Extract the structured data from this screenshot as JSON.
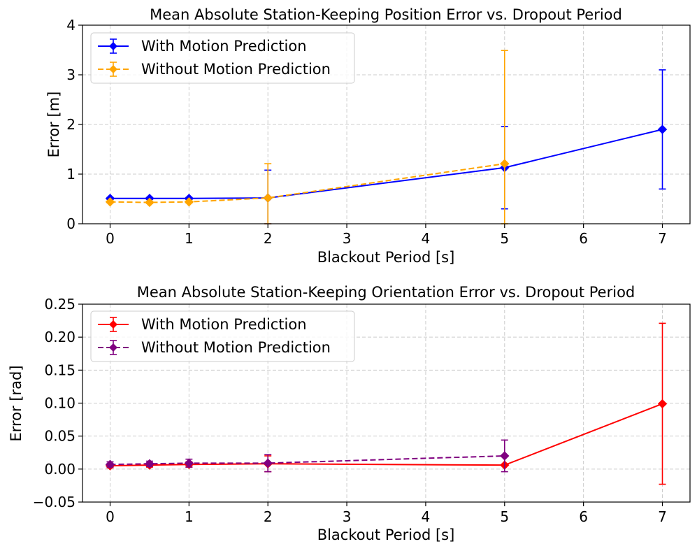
{
  "chart_data": [
    {
      "type": "line",
      "title": "Mean Absolute Station-Keeping Position Error vs. Dropout Period",
      "xlabel": "Blackout Period [s]",
      "ylabel": "Error [m]",
      "xlim": [
        -0.35,
        7.35
      ],
      "ylim": [
        0,
        4
      ],
      "xticks": [
        0,
        1,
        2,
        3,
        4,
        5,
        6,
        7
      ],
      "yticks": [
        0,
        1,
        2,
        3,
        4
      ],
      "xtick_labels": [
        "0",
        "1",
        "2",
        "3",
        "4",
        "5",
        "6",
        "7"
      ],
      "ytick_labels": [
        "0",
        "1",
        "2",
        "3",
        "4"
      ],
      "grid": true,
      "legend_position": "top-left",
      "series": [
        {
          "name": "With Motion Prediction",
          "color": "#0000ff",
          "dashed": false,
          "x": [
            0,
            0.5,
            1,
            2,
            5,
            7
          ],
          "y": [
            0.51,
            0.51,
            0.51,
            0.52,
            1.13,
            1.9
          ],
          "err": [
            0.02,
            0.02,
            0.02,
            0.56,
            0.83,
            1.2
          ]
        },
        {
          "name": "Without Motion Prediction",
          "color": "#ffa500",
          "dashed": true,
          "x": [
            0,
            0.5,
            1,
            2,
            5
          ],
          "y": [
            0.44,
            0.43,
            0.44,
            0.52,
            1.21
          ],
          "err": [
            0.02,
            0.02,
            0.02,
            0.69,
            2.28
          ]
        }
      ]
    },
    {
      "type": "line",
      "title": "Mean Absolute Station-Keeping Orientation Error vs. Dropout Period",
      "xlabel": "Blackout Period [s]",
      "ylabel": "Error [rad]",
      "xlim": [
        -0.35,
        7.35
      ],
      "ylim": [
        -0.05,
        0.25
      ],
      "xticks": [
        0,
        1,
        2,
        3,
        4,
        5,
        6,
        7
      ],
      "yticks": [
        -0.05,
        0.0,
        0.05,
        0.1,
        0.15,
        0.2,
        0.25
      ],
      "xtick_labels": [
        "0",
        "1",
        "2",
        "3",
        "4",
        "5",
        "6",
        "7"
      ],
      "ytick_labels": [
        "−0.05",
        "0.00",
        "0.05",
        "0.10",
        "0.15",
        "0.20",
        "0.25"
      ],
      "grid": true,
      "legend_position": "top-left",
      "series": [
        {
          "name": "With Motion Prediction",
          "color": "#ff0000",
          "dashed": false,
          "x": [
            0,
            0.5,
            1,
            2,
            5,
            7
          ],
          "y": [
            0.005,
            0.006,
            0.007,
            0.008,
            0.006,
            0.099
          ],
          "err": [
            0.003,
            0.003,
            0.004,
            0.012,
            0.0,
            0.122
          ]
        },
        {
          "name": "Without Motion Prediction",
          "color": "#800080",
          "dashed": true,
          "x": [
            0,
            0.5,
            1,
            2,
            5
          ],
          "y": [
            0.007,
            0.008,
            0.009,
            0.009,
            0.02
          ],
          "err": [
            0.004,
            0.004,
            0.006,
            0.013,
            0.024
          ]
        }
      ]
    }
  ]
}
